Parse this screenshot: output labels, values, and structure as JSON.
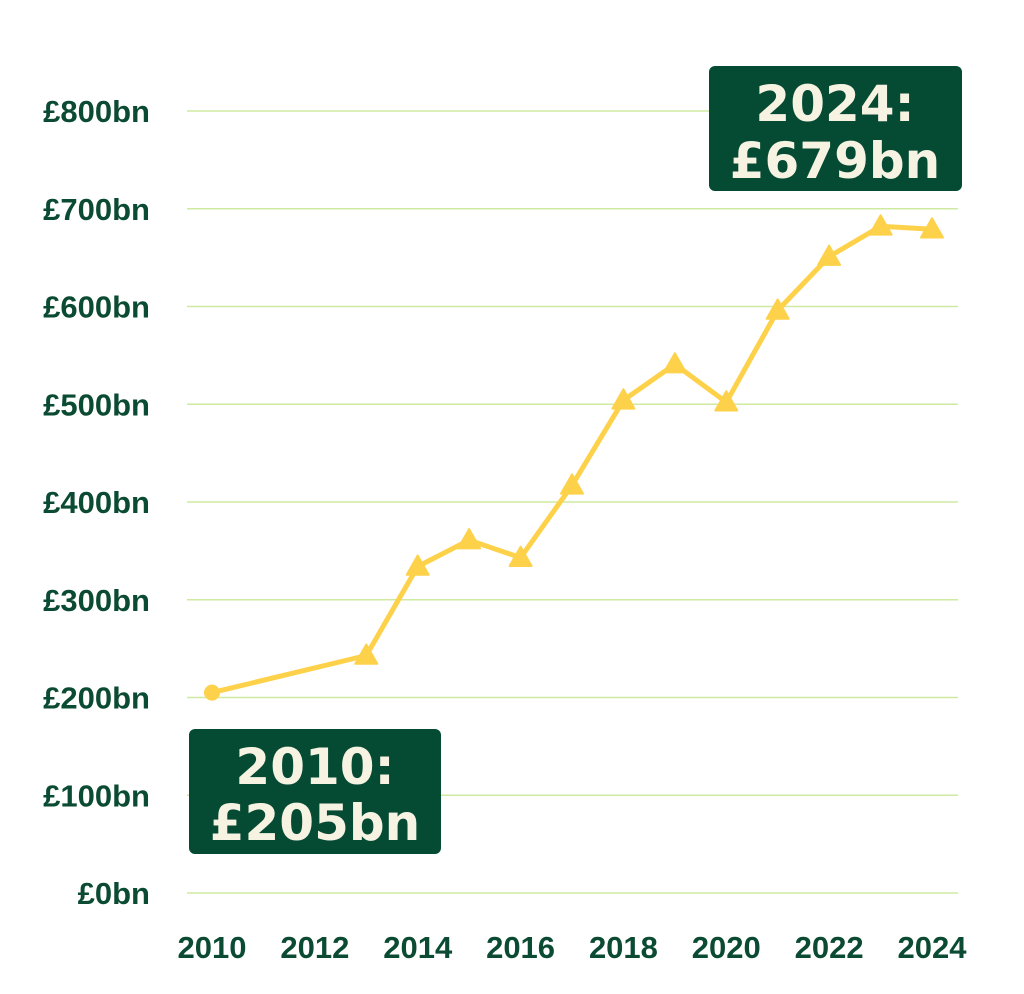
{
  "chart_data": {
    "type": "line",
    "title": "",
    "xlabel": "",
    "ylabel": "",
    "x": [
      2010,
      2013,
      2014,
      2015,
      2016,
      2017,
      2018,
      2019,
      2020,
      2021,
      2022,
      2023,
      2024
    ],
    "values": [
      205,
      243,
      334,
      361,
      343,
      417,
      504,
      541,
      502,
      596,
      651,
      682,
      679
    ],
    "ylim": [
      0,
      800
    ],
    "xlim": [
      2010,
      2024
    ],
    "y_ticks": [
      0,
      100,
      200,
      300,
      400,
      500,
      600,
      700,
      800
    ],
    "y_tick_labels": [
      "£0bn",
      "£100bn",
      "£200bn",
      "£300bn",
      "£400bn",
      "£500bn",
      "£600bn",
      "£700bn",
      "£800bn"
    ],
    "x_ticks": [
      2010,
      2012,
      2014,
      2016,
      2018,
      2020,
      2022,
      2024
    ],
    "x_tick_labels": [
      "2010",
      "2012",
      "2014",
      "2016",
      "2018",
      "2020",
      "2022",
      "2024"
    ],
    "grid": "horizontal",
    "legend": "none",
    "markers": {
      "first": "circle",
      "rest": "triangle"
    },
    "annotations": [
      {
        "x": 2024,
        "lines": [
          "2024:",
          "£679bn"
        ],
        "placement": "top-right"
      },
      {
        "x": 2010,
        "lines": [
          "2010:",
          "£205bn"
        ],
        "placement": "bottom-left"
      }
    ]
  },
  "colors": {
    "line": "#fdd24a",
    "gridline": "#cfeaa0",
    "axis_text": "#0b4a33",
    "callout_bg": "#054a33",
    "callout_text": "#f7f3e3"
  }
}
